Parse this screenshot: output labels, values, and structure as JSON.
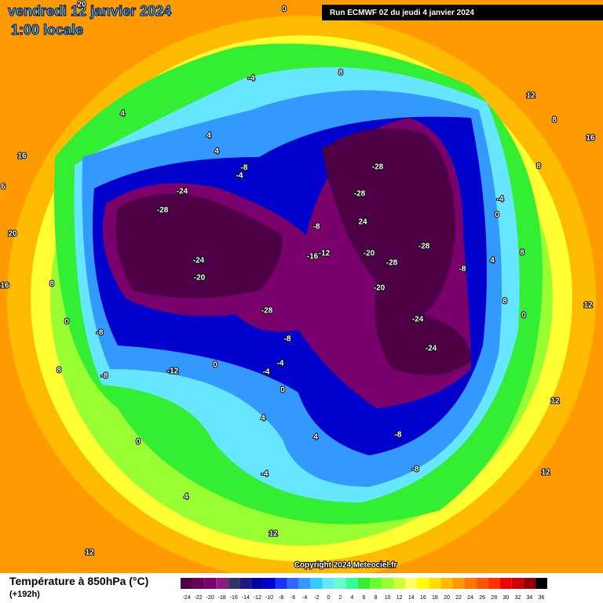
{
  "header": {
    "date": "vendredi 12 janvier 2024",
    "time": "1:00 locale",
    "run": "Run ECMWF 0Z du jeudi 4 janvier 2024"
  },
  "copyright": "Copyright 2024 Meteociel.fr",
  "legend": {
    "title": "Température à 850hPa (°C)",
    "lead": "(+192h)",
    "labels": [
      "-24",
      "-22",
      "-20",
      "-18",
      "-16",
      "-14",
      "-12",
      "-10",
      "-8",
      "-6",
      "-4",
      "-2",
      "0",
      "2",
      "4",
      "6",
      "8",
      "10",
      "12",
      "14",
      "16",
      "18",
      "20",
      "22",
      "24",
      "26",
      "28",
      "30",
      "32",
      "34",
      "36"
    ],
    "colors": [
      "#4d0045",
      "#660059",
      "#7a006b",
      "#8c1a80",
      "#333366",
      "#1a1a80",
      "#0000a0",
      "#0000cc",
      "#1a33ff",
      "#3366ff",
      "#3399ff",
      "#33ccff",
      "#66e6ff",
      "#66ffcc",
      "#33ff99",
      "#33ee33",
      "#66ff33",
      "#99ff33",
      "#ccff33",
      "#ffff66",
      "#ffff00",
      "#ffdd00",
      "#ffbb00",
      "#ff9900",
      "#ff7700",
      "#ff5500",
      "#ff3300",
      "#ee0000",
      "#cc0000",
      "#990000",
      "#000000"
    ]
  },
  "map": {
    "labels": [
      "-24",
      "-28",
      "-24",
      "-20",
      "-28",
      "-12",
      "-8",
      "-8",
      "0",
      "-4",
      "-4",
      "-8",
      "0",
      "4",
      "-4",
      "4",
      "0",
      "4",
      "12",
      "12",
      "-8",
      "-8",
      "12",
      "12",
      "-24",
      "-24",
      "-20",
      "-28",
      "-20",
      "-28",
      "-8",
      "24",
      "-28",
      "-28",
      "-16",
      "-12",
      "-8",
      "-4",
      "8",
      "12",
      "8",
      "16",
      "8",
      "-4",
      "0",
      "8",
      "4",
      "12",
      "8",
      "0",
      "20",
      "16",
      "6",
      "16",
      "8",
      "0",
      "8",
      "4",
      "4",
      "4",
      "-8",
      "-4",
      "20",
      "0"
    ]
  }
}
